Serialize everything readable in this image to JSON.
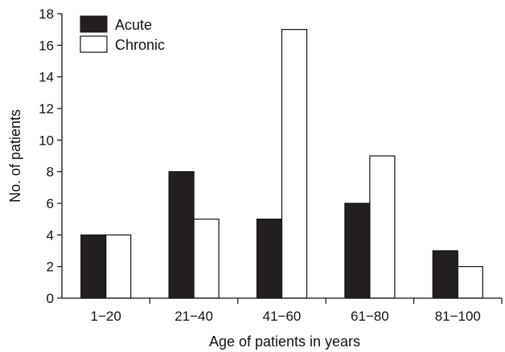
{
  "chart_data": {
    "type": "bar",
    "title": "",
    "xlabel": "Age of patients in years",
    "ylabel": "No. of patients",
    "categories": [
      "1−20",
      "21−40",
      "41−60",
      "61−80",
      "81−100"
    ],
    "series": [
      {
        "name": "Acute",
        "values": [
          4,
          8,
          5,
          6,
          3
        ],
        "color": "#231f20"
      },
      {
        "name": "Chronic",
        "values": [
          4,
          5,
          17,
          9,
          2
        ],
        "color": "#ffffff"
      }
    ],
    "ylim": [
      0,
      18
    ],
    "yticks": [
      0,
      2,
      4,
      6,
      8,
      10,
      12,
      14,
      16,
      18
    ],
    "grid": false,
    "legend_position": "top-left"
  }
}
